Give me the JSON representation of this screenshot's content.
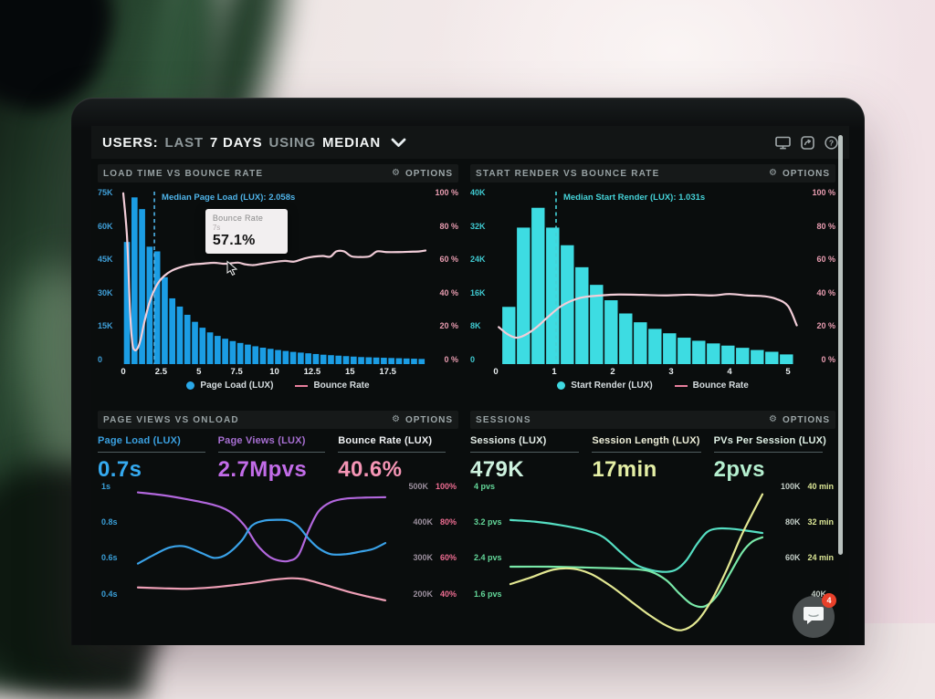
{
  "topbar": {
    "users": "USERS:",
    "last": "LAST",
    "days": "7 DAYS",
    "using": "USING",
    "median": "MEDIAN"
  },
  "ui": {
    "options_label": "OPTIONS"
  },
  "chat": {
    "badge": "4"
  },
  "chart_data": [
    {
      "title": "LOAD TIME VS BOUNCE RATE",
      "type": "bar",
      "x_max": 20,
      "y_max_k": 75,
      "left_axis": {
        "color": "#3f9fd8",
        "labels": [
          "75K",
          "60K",
          "45K",
          "30K",
          "15K",
          "0"
        ]
      },
      "right_axis": {
        "color": "#e89cb0",
        "labels": [
          "100 %",
          "80 %",
          "60 %",
          "40 %",
          "20 %",
          "0 %"
        ]
      },
      "x_ticks": [
        0,
        2.5,
        5,
        7.5,
        10,
        12.5,
        15,
        17.5
      ],
      "bars": {
        "color": "#1b9de4",
        "bin_width": 0.5,
        "x_start": 0,
        "unit": "K pageviews",
        "values": [
          52,
          71,
          66,
          50,
          48,
          37,
          28,
          24.5,
          21,
          18,
          15.5,
          13.5,
          12,
          10.8,
          9.8,
          9,
          8.3,
          7.6,
          7,
          6.5,
          6,
          5.6,
          5.2,
          4.9,
          4.6,
          4.3,
          4,
          3.8,
          3.6,
          3.4,
          3.2,
          3,
          2.9,
          2.8,
          2.7,
          2.6,
          2.5,
          2.4,
          2.3,
          2.2
        ]
      },
      "line": {
        "name": "Bounce Rate",
        "color": "#f2cdd8",
        "unit": "%",
        "points": [
          [
            0,
            97
          ],
          [
            0.25,
            72
          ],
          [
            0.45,
            30
          ],
          [
            0.6,
            12
          ],
          [
            0.75,
            8
          ],
          [
            0.95,
            9
          ],
          [
            1.15,
            14
          ],
          [
            1.4,
            24
          ],
          [
            1.7,
            34
          ],
          [
            2,
            41
          ],
          [
            2.3,
            46
          ],
          [
            2.7,
            50
          ],
          [
            3.2,
            53
          ],
          [
            3.8,
            55
          ],
          [
            4.5,
            56.5
          ],
          [
            5.2,
            57
          ],
          [
            6,
            57.5
          ],
          [
            6.6,
            57
          ],
          [
            7,
            57.1
          ],
          [
            7.6,
            57.6
          ],
          [
            8.1,
            56.6
          ],
          [
            8.6,
            56.2
          ],
          [
            9.2,
            57
          ],
          [
            10,
            58
          ],
          [
            10.7,
            58.6
          ],
          [
            11.3,
            58.2
          ],
          [
            12,
            60
          ],
          [
            12.6,
            61
          ],
          [
            13.2,
            61.4
          ],
          [
            13.7,
            61
          ],
          [
            14.1,
            64
          ],
          [
            14.6,
            64
          ],
          [
            15.1,
            61.2
          ],
          [
            15.7,
            60.8
          ],
          [
            16.3,
            61.2
          ],
          [
            16.8,
            64
          ],
          [
            17.4,
            63.6
          ],
          [
            18.2,
            63.6
          ],
          [
            19,
            63.8
          ],
          [
            19.6,
            64
          ],
          [
            20,
            64.5
          ]
        ]
      },
      "median": {
        "label": "Median Page Load (LUX): 2.058s",
        "value": 2.058,
        "color": "#4fb3e8"
      },
      "legend": [
        {
          "type": "dot",
          "color": "#2aa8e8",
          "label": "Page Load (LUX)"
        },
        {
          "type": "line",
          "color": "#e87f9d",
          "label": "Bounce Rate"
        }
      ],
      "tooltip": {
        "title": "Bounce Rate",
        "sub": "7s",
        "value": "57.1%",
        "x": 7,
        "pct": 57.1
      }
    },
    {
      "title": "START RENDER VS BOUNCE RATE",
      "type": "bar",
      "x_max": 5.25,
      "y_max_k": 40,
      "left_axis": {
        "color": "#3fc9d0",
        "labels": [
          "40K",
          "32K",
          "24K",
          "16K",
          "8K",
          "0"
        ]
      },
      "right_axis": {
        "color": "#e89cb0",
        "labels": [
          "100 %",
          "80 %",
          "60 %",
          "40 %",
          "20 %",
          "0 %"
        ]
      },
      "x_ticks": [
        0,
        1,
        2,
        3,
        4,
        5
      ],
      "bars": {
        "color": "#3ddce2",
        "bin_width": 0.25,
        "x_start": 0.1,
        "unit": "K pageviews",
        "values": [
          13,
          31,
          35.5,
          31,
          27,
          22,
          18,
          14.5,
          11.5,
          9.5,
          8,
          7,
          6,
          5.3,
          4.7,
          4.2,
          3.7,
          3.2,
          2.8,
          2.2
        ]
      },
      "line": {
        "name": "Bounce Rate",
        "color": "#f2cdd8",
        "unit": "%",
        "points": [
          [
            0.05,
            21
          ],
          [
            0.2,
            17
          ],
          [
            0.35,
            15
          ],
          [
            0.5,
            16.5
          ],
          [
            0.7,
            21
          ],
          [
            0.9,
            27
          ],
          [
            1.1,
            32.5
          ],
          [
            1.3,
            36
          ],
          [
            1.5,
            38
          ],
          [
            1.8,
            39
          ],
          [
            2.1,
            39.5
          ],
          [
            2.5,
            39.3
          ],
          [
            2.9,
            39
          ],
          [
            3.3,
            39.4
          ],
          [
            3.7,
            39
          ],
          [
            4,
            39.8
          ],
          [
            4.3,
            39
          ],
          [
            4.6,
            38.5
          ],
          [
            4.8,
            37
          ],
          [
            5,
            33
          ],
          [
            5.15,
            22
          ]
        ]
      },
      "median": {
        "label": "Median Start Render (LUX): 1.031s",
        "value": 1.031,
        "color": "#45d2d8"
      },
      "legend": [
        {
          "type": "dot",
          "color": "#3fd8e0",
          "label": "Start Render (LUX)"
        },
        {
          "type": "line",
          "color": "#e87f9d",
          "label": "Bounce Rate"
        }
      ]
    },
    {
      "title": "PAGE VIEWS VS ONLOAD",
      "type": "line",
      "metrics": [
        {
          "label": "Page Load (LUX)",
          "value": "0.7s",
          "label_color": "#3aa0e0",
          "value_color": "#35aaf0"
        },
        {
          "label": "Page Views (LUX)",
          "value": "2.7Mpvs",
          "label_color": "#a76fd2",
          "value_color": "#c26ce8"
        },
        {
          "label": "Bounce Rate (LUX)",
          "value": "40.6%",
          "label_color": "#f0f2f4",
          "value_color": "#f595b5"
        }
      ],
      "left_axis": {
        "color": "#3a9fd8",
        "labels": [
          "1s",
          "0.8s",
          "0.6s",
          "0.4s"
        ]
      },
      "right_axis": {
        "k_color": "#9b8f9d",
        "pct_color": "#ee6d92",
        "rows": [
          [
            "500K",
            "100%"
          ],
          [
            "400K",
            "80%"
          ],
          [
            "300K",
            "60%"
          ],
          [
            "200K",
            "40%"
          ]
        ]
      },
      "series": [
        {
          "name": "Page Views",
          "color": "#b267dd",
          "unit": "K",
          "ymin": 78,
          "ymax": 500,
          "points": [
            [
              0,
              480
            ],
            [
              0.1,
              472
            ],
            [
              0.2,
              460
            ],
            [
              0.3,
              445
            ],
            [
              0.37,
              425
            ],
            [
              0.43,
              385
            ],
            [
              0.48,
              330
            ],
            [
              0.53,
              295
            ],
            [
              0.57,
              283
            ],
            [
              0.61,
              282
            ],
            [
              0.65,
              300
            ],
            [
              0.69,
              370
            ],
            [
              0.73,
              425
            ],
            [
              0.78,
              452
            ],
            [
              0.84,
              462
            ],
            [
              0.92,
              465
            ],
            [
              1,
              466
            ]
          ]
        },
        {
          "name": "Page Load",
          "color": "#3aa2e8",
          "unit": "s",
          "ymin": 0.15,
          "ymax": 1.0,
          "points": [
            [
              0,
              0.545
            ],
            [
              0.07,
              0.6
            ],
            [
              0.13,
              0.64
            ],
            [
              0.19,
              0.645
            ],
            [
              0.26,
              0.605
            ],
            [
              0.31,
              0.578
            ],
            [
              0.36,
              0.6
            ],
            [
              0.42,
              0.68
            ],
            [
              0.46,
              0.765
            ],
            [
              0.51,
              0.795
            ],
            [
              0.57,
              0.8
            ],
            [
              0.61,
              0.795
            ],
            [
              0.65,
              0.76
            ],
            [
              0.69,
              0.69
            ],
            [
              0.73,
              0.635
            ],
            [
              0.78,
              0.6
            ],
            [
              0.84,
              0.6
            ],
            [
              0.9,
              0.615
            ],
            [
              0.95,
              0.63
            ],
            [
              1,
              0.665
            ]
          ]
        },
        {
          "name": "Bounce Rate",
          "color": "#ee9fb6",
          "unit": "%",
          "ymin": 15.5,
          "ymax": 100,
          "points": [
            [
              0,
              41
            ],
            [
              0.1,
              40.5
            ],
            [
              0.2,
              40.2
            ],
            [
              0.3,
              41
            ],
            [
              0.4,
              42.5
            ],
            [
              0.48,
              44
            ],
            [
              0.55,
              45.5
            ],
            [
              0.62,
              46.3
            ],
            [
              0.67,
              45.8
            ],
            [
              0.72,
              44
            ],
            [
              0.78,
              41.5
            ],
            [
              0.85,
              38.5
            ],
            [
              0.92,
              36
            ],
            [
              1,
              33.5
            ]
          ]
        }
      ]
    },
    {
      "title": "SESSIONS",
      "type": "line",
      "metrics": [
        {
          "label": "Sessions (LUX)",
          "value": "479K",
          "label_color": "#e6efe9",
          "value_color": "#cdf2df"
        },
        {
          "label": "Session Length (LUX)",
          "value": "17min",
          "label_color": "#eff0da",
          "value_color": "#e5efa5"
        },
        {
          "label": "PVs Per Session (LUX)",
          "value": "2pvs",
          "label_color": "#dff0e5",
          "value_color": "#b5efcf"
        }
      ],
      "left_axis": {
        "color": "#64d89a",
        "labels": [
          "4 pvs",
          "3.2 pvs",
          "2.4 pvs",
          "1.6 pvs"
        ]
      },
      "right_axis": {
        "k_color": "#c3cdc6",
        "pct_color": "#dbe595",
        "rows": [
          [
            "100K",
            "40 min"
          ],
          [
            "80K",
            "32 min"
          ],
          [
            "60K",
            "24 min"
          ],
          [
            "40K",
            ""
          ]
        ]
      },
      "series": [
        {
          "name": "Sessions",
          "color": "#55dec2",
          "unit": "K",
          "ymin": 15.5,
          "ymax": 100,
          "points": [
            [
              0,
              80
            ],
            [
              0.1,
              79
            ],
            [
              0.2,
              77
            ],
            [
              0.3,
              74
            ],
            [
              0.37,
              70
            ],
            [
              0.44,
              61
            ],
            [
              0.5,
              54
            ],
            [
              0.56,
              51
            ],
            [
              0.62,
              50
            ],
            [
              0.66,
              51.5
            ],
            [
              0.7,
              57
            ],
            [
              0.74,
              66
            ],
            [
              0.78,
              73
            ],
            [
              0.82,
              75
            ],
            [
              0.87,
              75
            ],
            [
              0.93,
              74
            ],
            [
              1,
              72.5
            ]
          ]
        },
        {
          "name": "PVs Per Session",
          "color": "#79e8a8",
          "unit": "pvs",
          "ymin": 0.62,
          "ymax": 4,
          "points": [
            [
              0,
              2.12
            ],
            [
              0.15,
              2.12
            ],
            [
              0.3,
              2.1
            ],
            [
              0.42,
              2.08
            ],
            [
              0.5,
              2.06
            ],
            [
              0.56,
              2.0
            ],
            [
              0.62,
              1.8
            ],
            [
              0.67,
              1.5
            ],
            [
              0.72,
              1.25
            ],
            [
              0.77,
              1.2
            ],
            [
              0.82,
              1.45
            ],
            [
              0.87,
              1.95
            ],
            [
              0.92,
              2.45
            ],
            [
              0.96,
              2.7
            ],
            [
              1,
              2.8
            ]
          ]
        },
        {
          "name": "Session Length",
          "color": "#e3e892",
          "unit": "min",
          "ymin": 6.7,
          "ymax": 40,
          "points": [
            [
              0,
              17.5
            ],
            [
              0.08,
              19
            ],
            [
              0.17,
              20.8
            ],
            [
              0.25,
              21
            ],
            [
              0.32,
              19.8
            ],
            [
              0.4,
              17
            ],
            [
              0.48,
              13.5
            ],
            [
              0.55,
              10.5
            ],
            [
              0.62,
              8
            ],
            [
              0.68,
              7
            ],
            [
              0.74,
              9
            ],
            [
              0.8,
              14
            ],
            [
              0.86,
              21
            ],
            [
              0.92,
              29
            ],
            [
              1,
              38
            ]
          ]
        }
      ]
    }
  ]
}
